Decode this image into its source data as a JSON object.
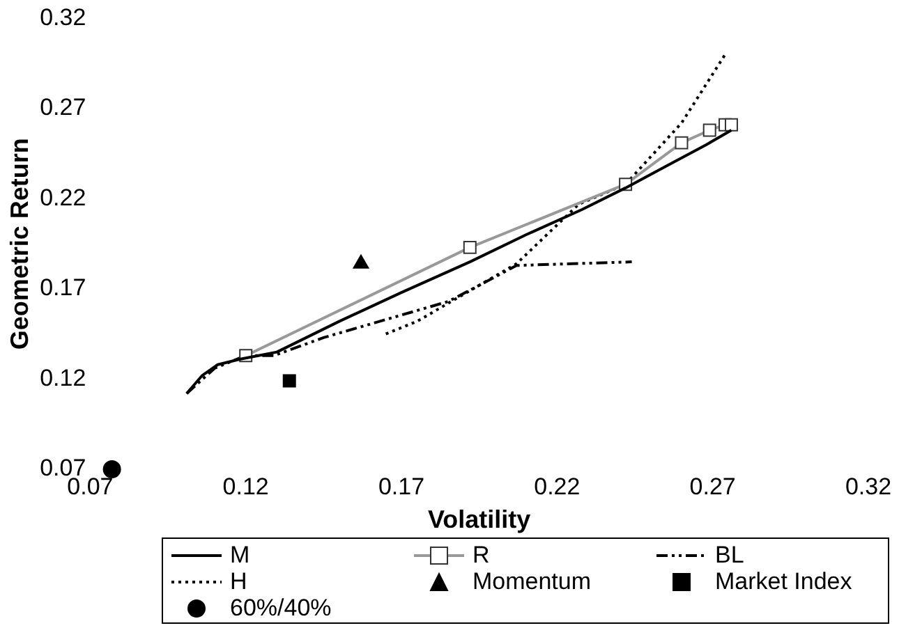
{
  "chart_data": {
    "type": "line",
    "xlabel": "Volatility",
    "ylabel": "Geometric Return",
    "xlim": [
      0.07,
      0.32
    ],
    "xticks": [
      0.07,
      0.12,
      0.17,
      0.22,
      0.27,
      0.32
    ],
    "ylim": [
      0.07,
      0.32
    ],
    "yticks": [
      0.07,
      0.12,
      0.17,
      0.22,
      0.27,
      0.32
    ],
    "grid": false,
    "legend": "bottom",
    "series": [
      {
        "name": "M",
        "type": "line",
        "color": "#000000",
        "line_style": "solid",
        "marker": "none",
        "x": [
          0.101,
          0.106,
          0.111,
          0.118,
          0.13,
          0.15,
          0.17,
          0.192,
          0.21,
          0.228,
          0.242,
          0.255,
          0.268,
          0.276
        ],
        "values": [
          0.112,
          0.122,
          0.128,
          0.131,
          0.135,
          0.152,
          0.168,
          0.185,
          0.2,
          0.214,
          0.226,
          0.238,
          0.25,
          0.258
        ]
      },
      {
        "name": "R",
        "type": "line",
        "color": "#999999",
        "line_style": "solid",
        "marker": "square",
        "x": [
          0.12,
          0.192,
          0.242,
          0.26,
          0.269,
          0.274,
          0.276
        ],
        "values": [
          0.133,
          0.193,
          0.228,
          0.251,
          0.258,
          0.261,
          0.261
        ]
      },
      {
        "name": "BL",
        "type": "line",
        "color": "#000000",
        "line_style": "dashed",
        "marker": "none",
        "x": [
          0.101,
          0.11,
          0.12,
          0.129,
          0.145,
          0.165,
          0.185,
          0.195,
          0.207,
          0.244
        ],
        "values": [
          0.112,
          0.126,
          0.133,
          0.133,
          0.143,
          0.153,
          0.163,
          0.172,
          0.183,
          0.185
        ]
      },
      {
        "name": "H",
        "type": "line",
        "color": "#000000",
        "line_style": "dotted",
        "marker": "none",
        "x": [
          0.165,
          0.175,
          0.19,
          0.207,
          0.227,
          0.242,
          0.26,
          0.274
        ],
        "values": [
          0.145,
          0.152,
          0.167,
          0.184,
          0.217,
          0.228,
          0.262,
          0.3
        ]
      },
      {
        "name": "Momentum",
        "type": "scatter",
        "color": "#000000",
        "marker": "triangle",
        "x": [
          0.157
        ],
        "values": [
          0.184
        ]
      },
      {
        "name": "Market Index",
        "type": "scatter",
        "color": "#000000",
        "marker": "square",
        "x": [
          0.134
        ],
        "values": [
          0.119
        ]
      },
      {
        "name": "60%/40%",
        "type": "scatter",
        "color": "#000000",
        "marker": "circle",
        "x": [
          0.077
        ],
        "values": [
          0.07
        ]
      }
    ]
  }
}
